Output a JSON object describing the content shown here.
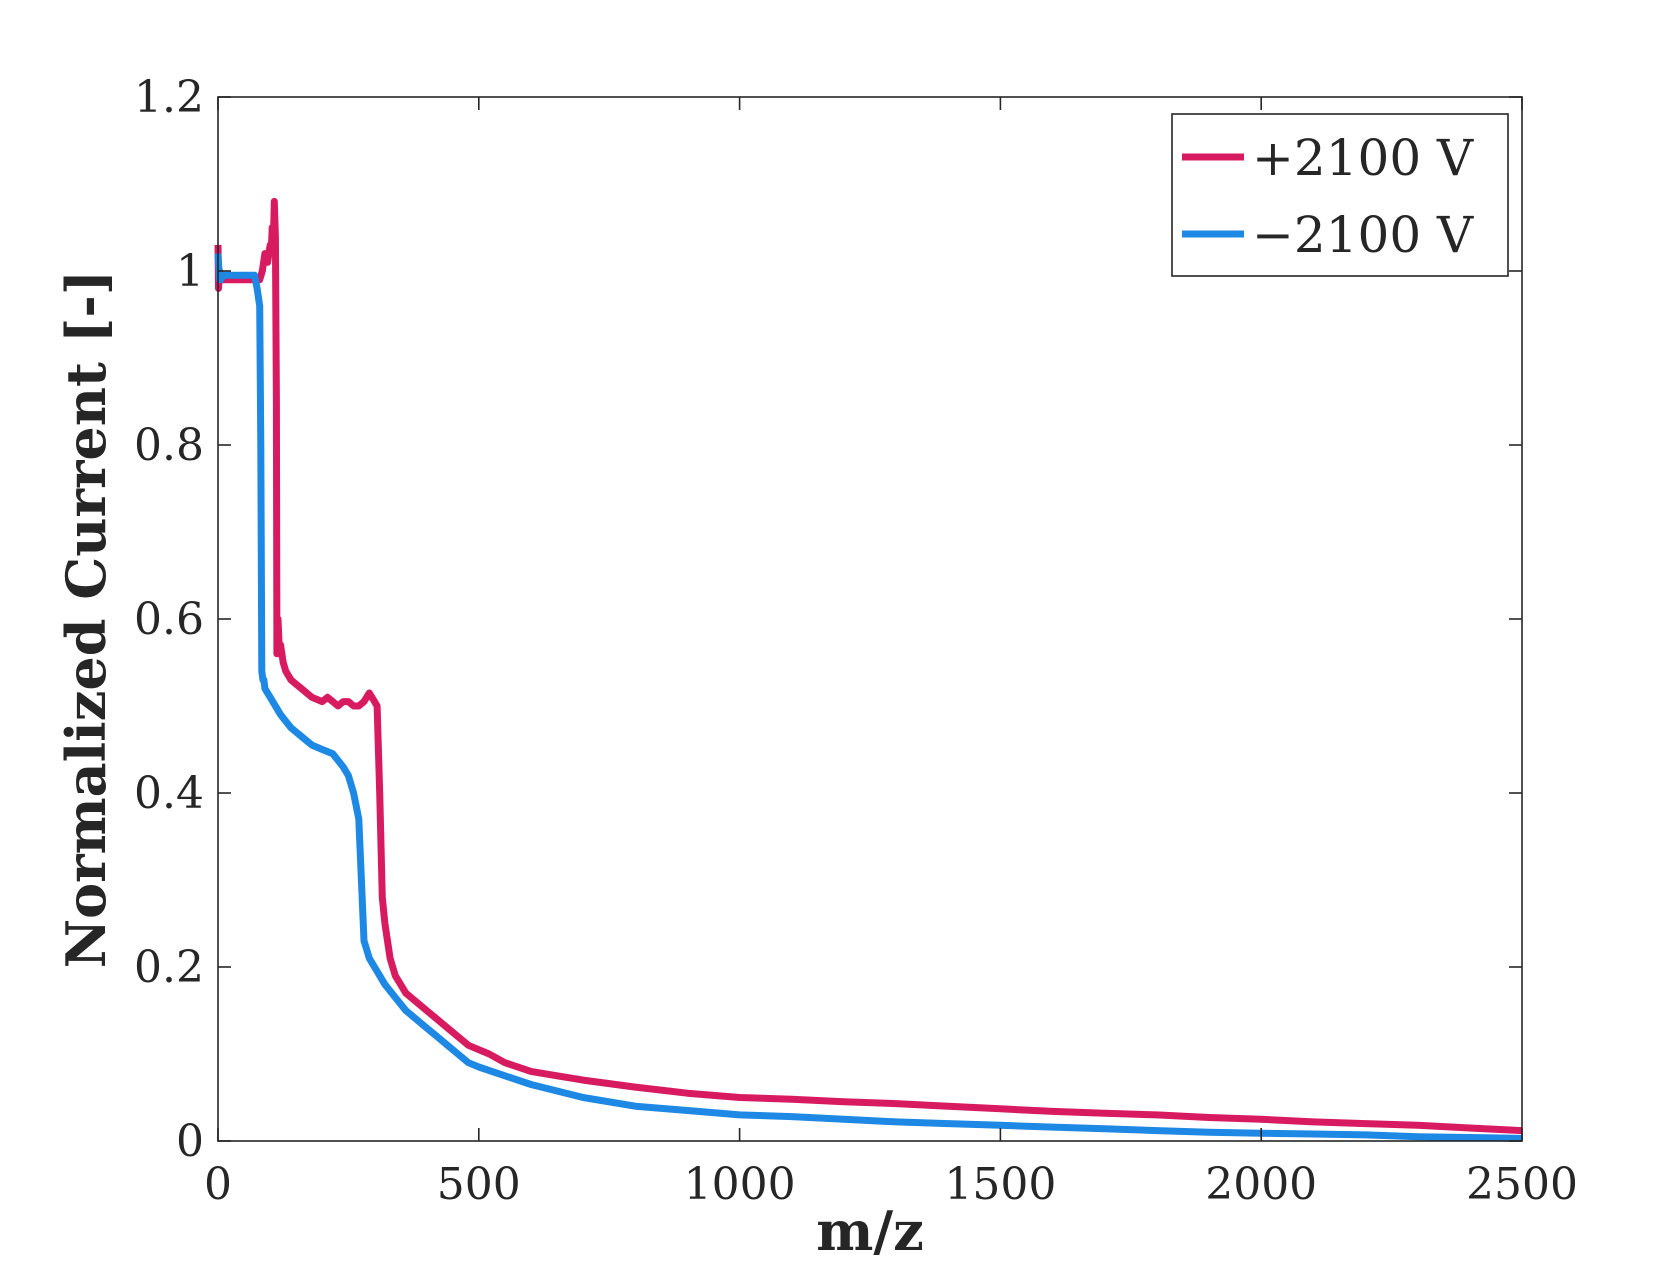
{
  "chart_data": {
    "type": "line",
    "title": "",
    "xlabel": "m/z",
    "ylabel": "Normalized Current [-]",
    "xlim": [
      0,
      2500
    ],
    "ylim": [
      0,
      1.2
    ],
    "xticks": [
      0,
      500,
      1000,
      1500,
      2000,
      2500
    ],
    "xtick_labels": [
      "0",
      "500",
      "1000",
      "1500",
      "2000",
      "2500"
    ],
    "yticks": [
      0,
      0.2,
      0.4,
      0.6,
      0.8,
      1,
      1.2
    ],
    "ytick_labels": [
      "0",
      "0.2",
      "0.4",
      "0.6",
      "0.8",
      "1",
      "1.2"
    ],
    "grid": false,
    "legend_position": "top-right",
    "series": [
      {
        "name": "+2100 V",
        "color": "#d81b60",
        "x": [
          0,
          1,
          3,
          5,
          10,
          20,
          40,
          60,
          70,
          80,
          85,
          90,
          95,
          100,
          102,
          104,
          106,
          108,
          110,
          112,
          113,
          115,
          118,
          120,
          125,
          130,
          140,
          150,
          160,
          180,
          200,
          210,
          220,
          230,
          240,
          250,
          260,
          270,
          280,
          290,
          295,
          300,
          305,
          310,
          315,
          320,
          330,
          340,
          350,
          360,
          380,
          400,
          420,
          440,
          460,
          480,
          500,
          520,
          550,
          600,
          650,
          700,
          800,
          900,
          1000,
          1100,
          1200,
          1300,
          1400,
          1500,
          1600,
          1700,
          1800,
          1900,
          2000,
          2100,
          2200,
          2300,
          2400,
          2500
        ],
        "y": [
          1.03,
          0.98,
          1.0,
          0.99,
          0.99,
          0.99,
          0.99,
          0.99,
          0.99,
          0.99,
          1.0,
          1.02,
          1.01,
          1.03,
          1.02,
          1.05,
          1.03,
          1.08,
          1.04,
          0.85,
          0.56,
          0.6,
          0.56,
          0.57,
          0.55,
          0.54,
          0.53,
          0.525,
          0.52,
          0.51,
          0.505,
          0.51,
          0.505,
          0.5,
          0.505,
          0.505,
          0.5,
          0.5,
          0.505,
          0.515,
          0.51,
          0.505,
          0.5,
          0.4,
          0.28,
          0.25,
          0.21,
          0.19,
          0.18,
          0.17,
          0.16,
          0.15,
          0.14,
          0.13,
          0.12,
          0.11,
          0.105,
          0.1,
          0.09,
          0.08,
          0.075,
          0.07,
          0.062,
          0.055,
          0.05,
          0.048,
          0.045,
          0.043,
          0.04,
          0.037,
          0.034,
          0.032,
          0.03,
          0.027,
          0.025,
          0.022,
          0.02,
          0.018,
          0.015,
          0.012
        ]
      },
      {
        "name": "−2100 V",
        "color": "#1e88e5",
        "x": [
          0,
          1,
          3,
          5,
          10,
          20,
          40,
          60,
          70,
          75,
          80,
          82,
          84,
          86,
          88,
          90,
          100,
          120,
          140,
          160,
          180,
          200,
          220,
          240,
          250,
          260,
          270,
          275,
          280,
          285,
          290,
          300,
          320,
          340,
          360,
          380,
          400,
          420,
          440,
          460,
          480,
          500,
          550,
          600,
          700,
          800,
          900,
          1000,
          1100,
          1200,
          1300,
          1400,
          1500,
          1600,
          1700,
          1800,
          1900,
          2000,
          2100,
          2200,
          2300,
          2400,
          2500
        ],
        "y": [
          1.02,
          1.01,
          0.99,
          0.99,
          0.995,
          0.995,
          0.995,
          0.995,
          0.995,
          0.98,
          0.96,
          0.8,
          0.54,
          0.53,
          0.53,
          0.52,
          0.51,
          0.49,
          0.475,
          0.465,
          0.455,
          0.45,
          0.445,
          0.43,
          0.42,
          0.4,
          0.37,
          0.3,
          0.23,
          0.22,
          0.21,
          0.2,
          0.18,
          0.165,
          0.15,
          0.14,
          0.13,
          0.12,
          0.11,
          0.1,
          0.09,
          0.085,
          0.075,
          0.065,
          0.05,
          0.04,
          0.035,
          0.03,
          0.028,
          0.025,
          0.022,
          0.02,
          0.018,
          0.016,
          0.014,
          0.012,
          0.01,
          0.009,
          0.008,
          0.007,
          0.005,
          0.004,
          0.003
        ]
      }
    ]
  }
}
